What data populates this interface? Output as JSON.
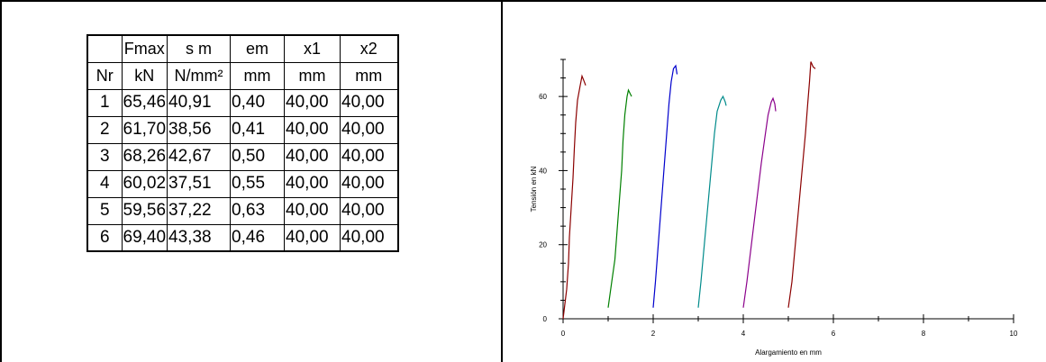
{
  "table": {
    "header_row_1": [
      "",
      "Fmax",
      "s m",
      "em",
      "x1",
      "x2"
    ],
    "header_row_2": [
      "Nr",
      "kN",
      "N/mm²",
      "mm",
      "mm",
      "mm"
    ],
    "rows": [
      [
        "1",
        "65,46",
        "40,91",
        "0,40",
        "40,00",
        "40,00"
      ],
      [
        "2",
        "61,70",
        "38,56",
        "0,41",
        "40,00",
        "40,00"
      ],
      [
        "3",
        "68,26",
        "42,67",
        "0,50",
        "40,00",
        "40,00"
      ],
      [
        "4",
        "60,02",
        "37,51",
        "0,55",
        "40,00",
        "40,00"
      ],
      [
        "5",
        "59,56",
        "37,22",
        "0,63",
        "40,00",
        "40,00"
      ],
      [
        "6",
        "69,40",
        "43,38",
        "0,46",
        "40,00",
        "40,00"
      ]
    ]
  },
  "chart_data": {
    "type": "line",
    "title": "",
    "xlabel": "Alargamiento en mm",
    "ylabel": "Tensión en kN",
    "xlim": [
      0,
      10
    ],
    "ylim": [
      0,
      70
    ],
    "xticks": [
      "0",
      "2",
      "4",
      "6",
      "8",
      "10"
    ],
    "yticks": [
      "0",
      "20",
      "40",
      "60"
    ],
    "grid": false,
    "series": [
      {
        "color": "#8b0000",
        "points": [
          [
            0.0,
            0
          ],
          [
            0.08,
            8
          ],
          [
            0.12,
            15
          ],
          [
            0.14,
            22
          ],
          [
            0.18,
            30
          ],
          [
            0.22,
            38
          ],
          [
            0.25,
            46
          ],
          [
            0.28,
            53
          ],
          [
            0.32,
            59
          ],
          [
            0.38,
            63
          ],
          [
            0.42,
            65.5
          ],
          [
            0.47,
            64
          ],
          [
            0.5,
            63
          ]
        ]
      },
      {
        "color": "#008000",
        "points": [
          [
            1.0,
            3
          ],
          [
            1.08,
            10
          ],
          [
            1.15,
            16
          ],
          [
            1.2,
            24
          ],
          [
            1.25,
            32
          ],
          [
            1.3,
            40
          ],
          [
            1.33,
            48
          ],
          [
            1.37,
            55
          ],
          [
            1.42,
            60
          ],
          [
            1.45,
            61.7
          ],
          [
            1.5,
            60.5
          ],
          [
            1.52,
            60
          ]
        ]
      },
      {
        "color": "#0000cd",
        "points": [
          [
            2.0,
            3
          ],
          [
            2.05,
            10
          ],
          [
            2.1,
            18
          ],
          [
            2.15,
            26
          ],
          [
            2.2,
            34
          ],
          [
            2.25,
            42
          ],
          [
            2.3,
            50
          ],
          [
            2.35,
            58
          ],
          [
            2.4,
            64
          ],
          [
            2.45,
            67.5
          ],
          [
            2.5,
            68.3
          ],
          [
            2.53,
            66
          ]
        ]
      },
      {
        "color": "#008b8b",
        "points": [
          [
            3.0,
            3
          ],
          [
            3.06,
            10
          ],
          [
            3.12,
            18
          ],
          [
            3.18,
            26
          ],
          [
            3.24,
            34
          ],
          [
            3.3,
            42
          ],
          [
            3.36,
            50
          ],
          [
            3.42,
            56
          ],
          [
            3.5,
            59
          ],
          [
            3.55,
            60
          ],
          [
            3.6,
            58.5
          ],
          [
            3.62,
            57.5
          ]
        ]
      },
      {
        "color": "#8b008b",
        "points": [
          [
            4.0,
            3
          ],
          [
            4.08,
            10
          ],
          [
            4.16,
            18
          ],
          [
            4.24,
            26
          ],
          [
            4.32,
            34
          ],
          [
            4.4,
            42
          ],
          [
            4.48,
            49
          ],
          [
            4.55,
            55
          ],
          [
            4.62,
            58.5
          ],
          [
            4.66,
            59.5
          ],
          [
            4.7,
            58
          ],
          [
            4.72,
            56
          ]
        ]
      },
      {
        "color": "#8b0000",
        "points": [
          [
            5.0,
            3
          ],
          [
            5.08,
            10
          ],
          [
            5.14,
            18
          ],
          [
            5.2,
            26
          ],
          [
            5.26,
            34
          ],
          [
            5.32,
            42
          ],
          [
            5.38,
            50
          ],
          [
            5.43,
            58
          ],
          [
            5.47,
            64
          ],
          [
            5.5,
            69.4
          ],
          [
            5.55,
            68
          ],
          [
            5.6,
            67.5
          ]
        ]
      }
    ]
  }
}
